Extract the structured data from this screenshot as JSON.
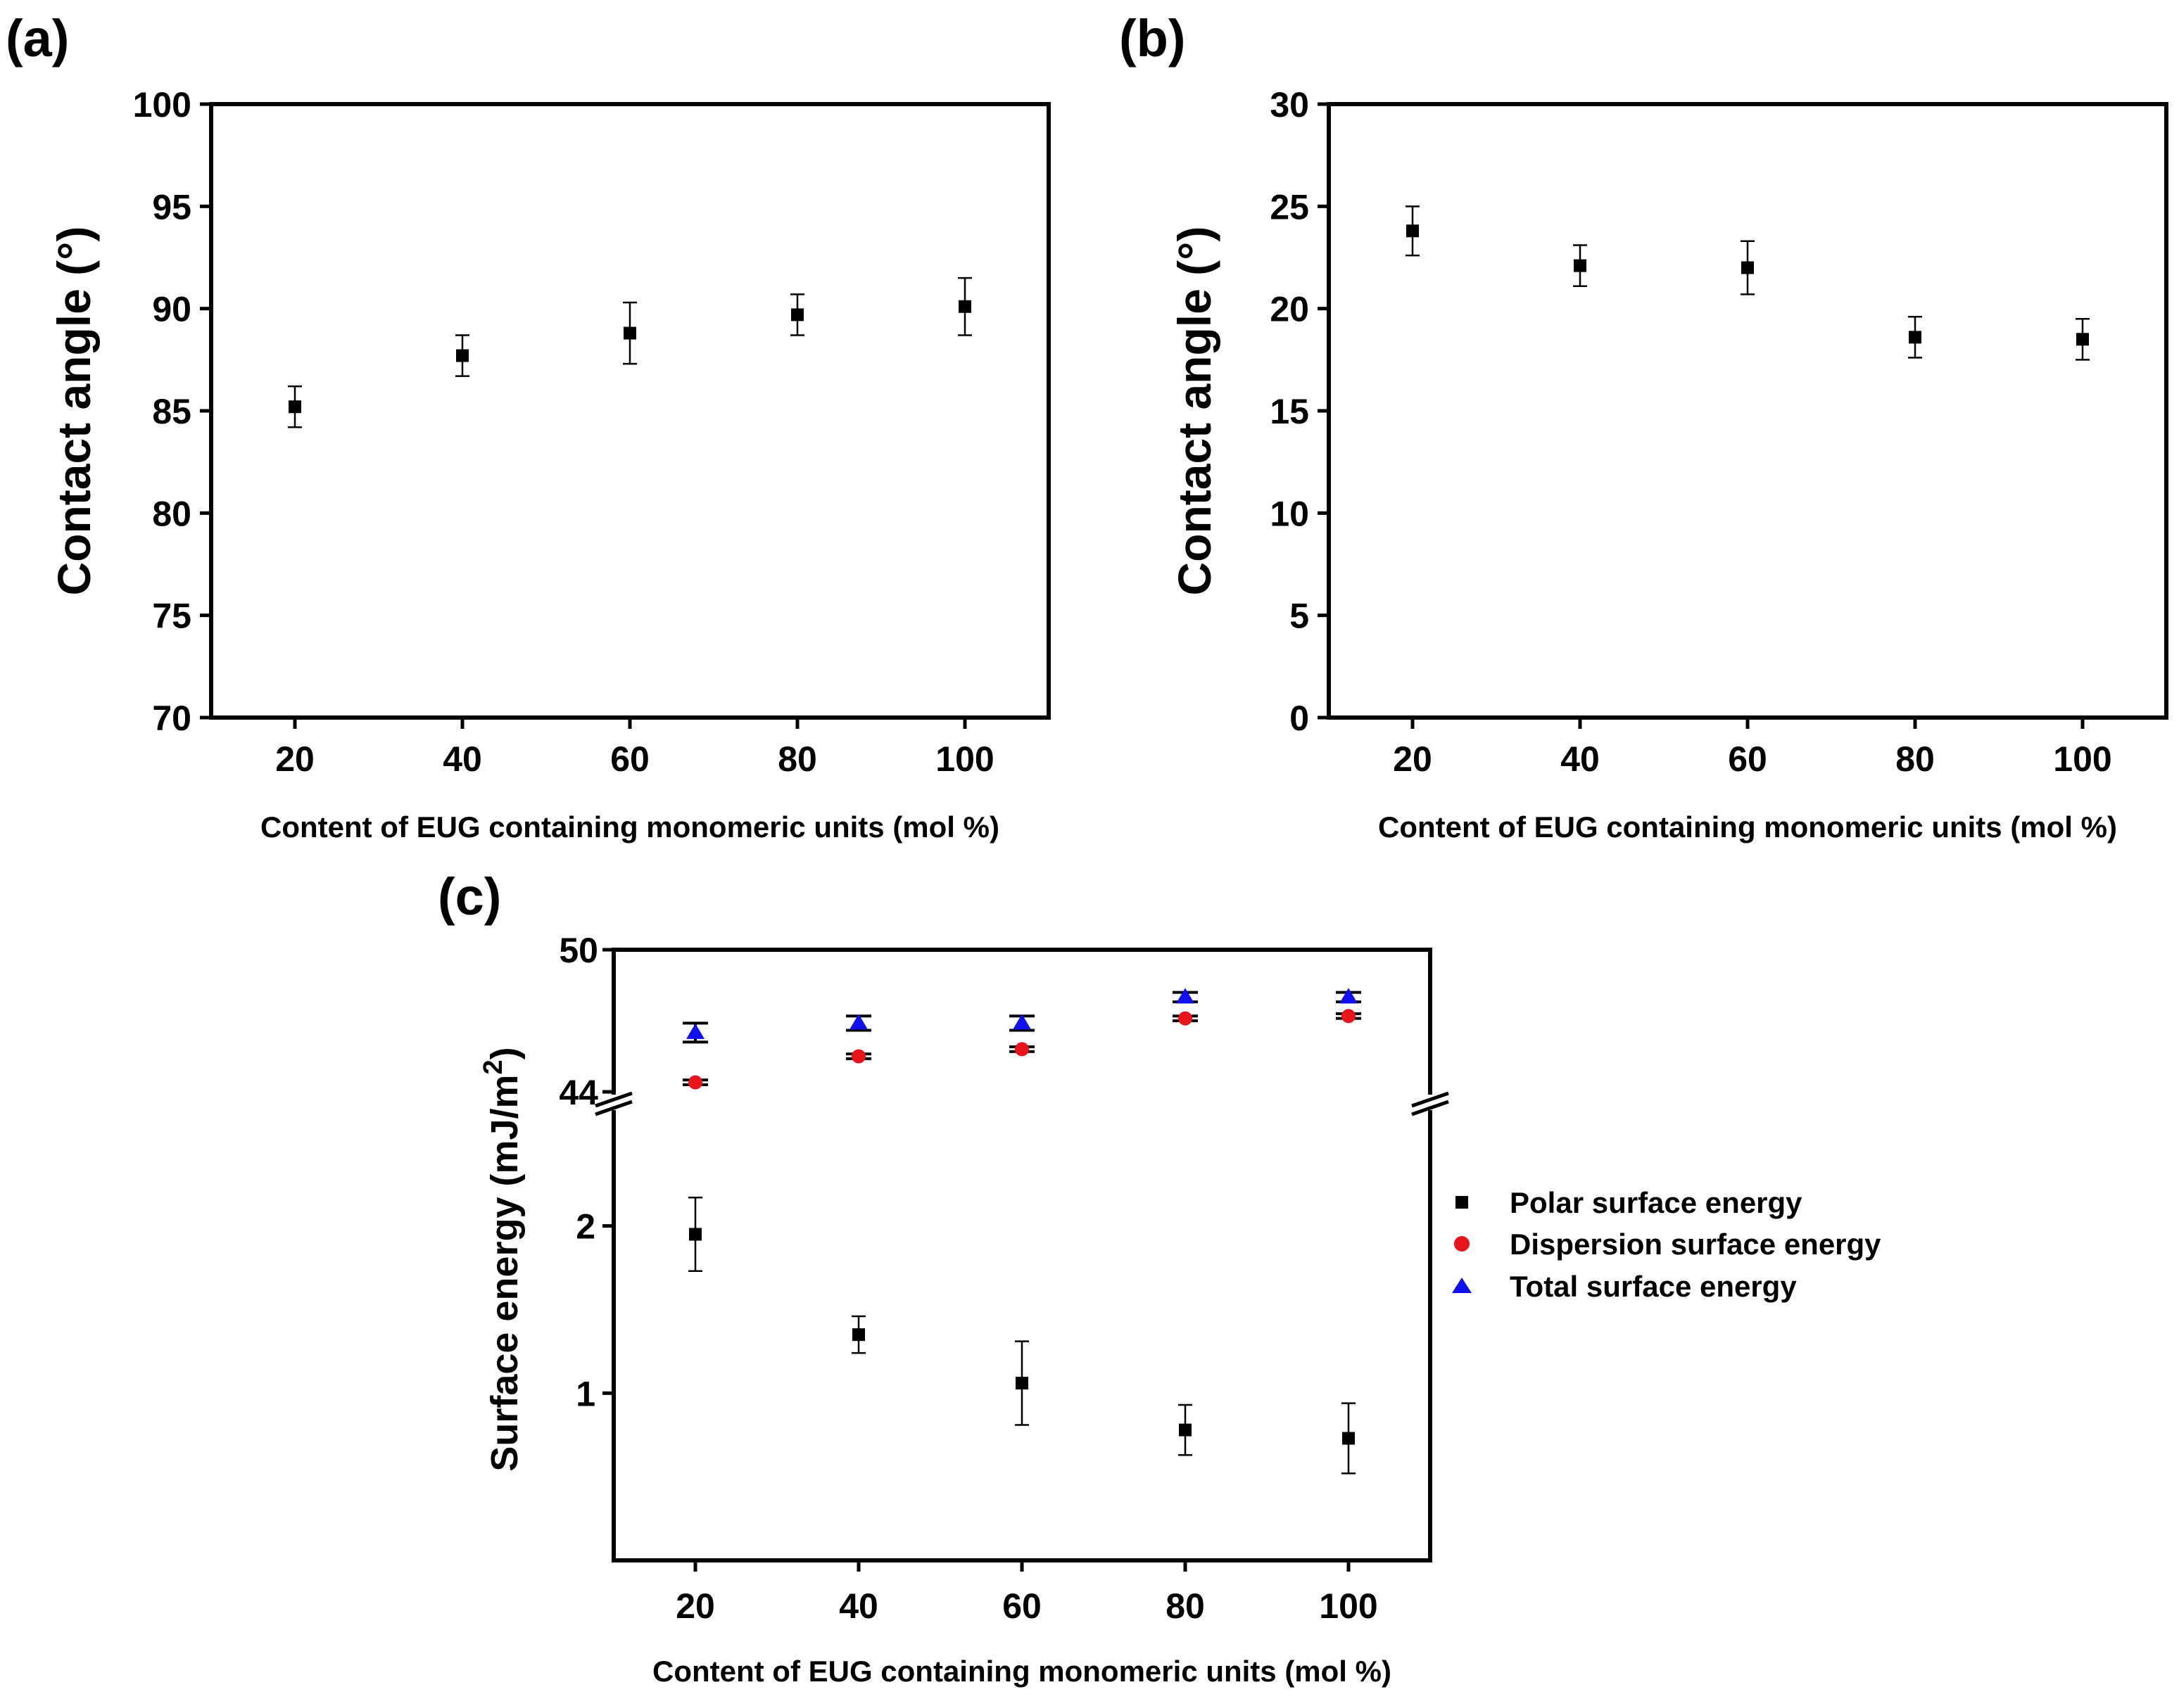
{
  "chart_data": [
    {
      "id": "a",
      "type": "scatter",
      "panel_label": "(a)",
      "xlabel": "Content of EUG containing monomeric units (mol %)",
      "ylabel": "Contact angle (°)",
      "xlim": [
        10,
        110
      ],
      "ylim": [
        70,
        100
      ],
      "xticks": [
        20,
        40,
        60,
        80,
        100
      ],
      "yticks": [
        70,
        75,
        80,
        85,
        90,
        95,
        100
      ],
      "series": [
        {
          "name": "Contact angle",
          "marker": "square",
          "color": "#000000",
          "x": [
            20,
            40,
            60,
            80,
            100
          ],
          "values": [
            85.2,
            87.7,
            88.8,
            89.7,
            90.1
          ],
          "errors": [
            1.0,
            1.0,
            1.5,
            1.0,
            1.4
          ]
        }
      ]
    },
    {
      "id": "b",
      "type": "scatter",
      "panel_label": "(b)",
      "xlabel": "Content of EUG containing monomeric units (mol %)",
      "ylabel": "Contact angle (°)",
      "xlim": [
        10,
        110
      ],
      "ylim": [
        0,
        30
      ],
      "xticks": [
        20,
        40,
        60,
        80,
        100
      ],
      "yticks": [
        0,
        5,
        10,
        15,
        20,
        25,
        30
      ],
      "series": [
        {
          "name": "Contact angle",
          "marker": "square",
          "color": "#000000",
          "x": [
            20,
            40,
            60,
            80,
            100
          ],
          "values": [
            23.8,
            22.1,
            22.0,
            18.6,
            18.5
          ],
          "errors": [
            1.2,
            1.0,
            1.3,
            1.0,
            1.0
          ]
        }
      ]
    },
    {
      "id": "c",
      "type": "scatter",
      "panel_label": "(c)",
      "xlabel": "Content of EUG containing monomeric units (mol %)",
      "ylabel": "Surface energy (mJ/m",
      "ylabel_sup": "2",
      "ylabel_end": ")",
      "xlim": [
        10,
        110
      ],
      "broken_axis": true,
      "ylim_lower": [
        0.0,
        2.6
      ],
      "ylim_upper": [
        44,
        50
      ],
      "xticks": [
        20,
        40,
        60,
        80,
        100
      ],
      "yticks_lower": [
        1,
        2
      ],
      "yticks_upper": [
        44,
        50
      ],
      "legend_position": "right",
      "series": [
        {
          "name": "Polar surface energy",
          "marker": "square",
          "color": "#000000",
          "segment": "lower",
          "x": [
            20,
            40,
            60,
            80,
            100
          ],
          "values": [
            1.95,
            1.35,
            1.06,
            0.78,
            0.73
          ],
          "errors": [
            0.22,
            0.11,
            0.25,
            0.15,
            0.21
          ]
        },
        {
          "name": "Dispersion surface energy",
          "marker": "circle",
          "color": "#e8141b",
          "segment": "upper",
          "x": [
            20,
            40,
            60,
            80,
            100
          ],
          "values": [
            44.4,
            45.5,
            45.8,
            47.1,
            47.2
          ],
          "errors": [
            0.1,
            0.1,
            0.1,
            0.1,
            0.1
          ]
        },
        {
          "name": "Total surface energy",
          "marker": "triangle",
          "color": "#1010ee",
          "segment": "upper",
          "x": [
            20,
            40,
            60,
            80,
            100
          ],
          "values": [
            46.5,
            46.9,
            46.9,
            48.0,
            48.0
          ],
          "errors": [
            0.4,
            0.3,
            0.3,
            0.2,
            0.2
          ]
        }
      ]
    }
  ]
}
